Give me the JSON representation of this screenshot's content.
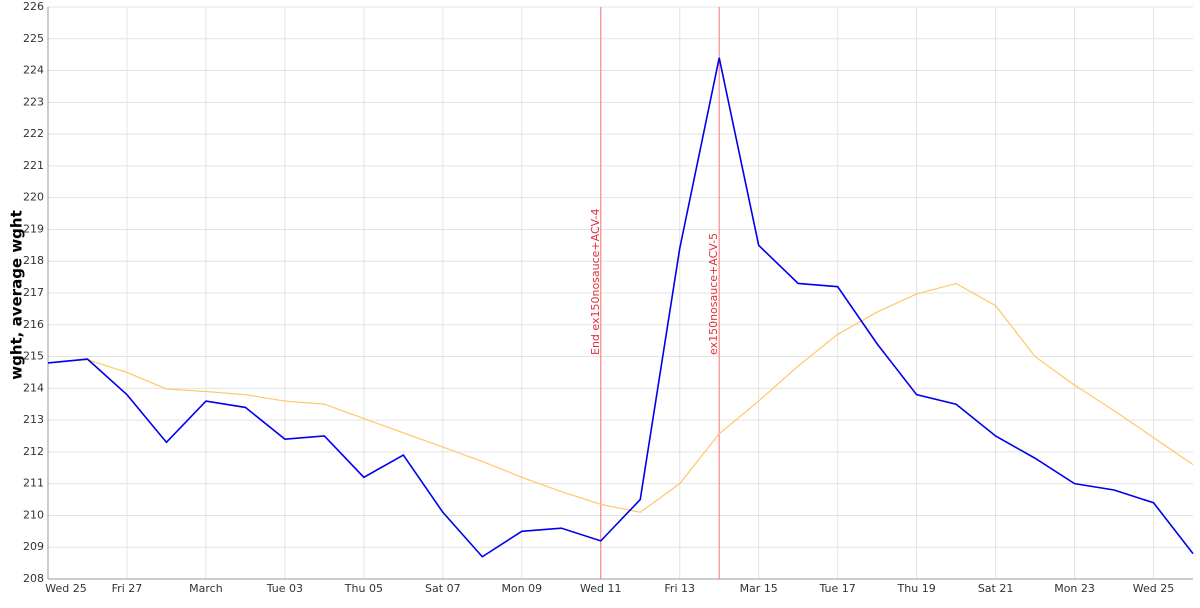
{
  "chart_data": {
    "type": "line",
    "y_label": "wght, average wght",
    "categories": [
      "Wed 25",
      null,
      "Fri 27",
      null,
      "March",
      null,
      "Tue 03",
      null,
      "Thu 05",
      null,
      "Sat 07",
      null,
      "Mon 09",
      null,
      "Wed 11",
      null,
      "Fri 13",
      null,
      "Mar 15",
      null,
      "Tue 17",
      null,
      "Thu 19",
      null,
      "Sat 21",
      null,
      "Mon 23",
      null,
      "Wed 25",
      null
    ],
    "series": [
      {
        "color": "#0000ee",
        "values": [
          214.8,
          214.92,
          213.8,
          212.3,
          213.6,
          213.4,
          212.4,
          212.5,
          211.2,
          211.9,
          210.1,
          208.7,
          209.5,
          209.6,
          209.2,
          210.5,
          218.4,
          224.4,
          218.5,
          217.3,
          217.2,
          215.4,
          213.8,
          213.5,
          212.5,
          211.8,
          211.0,
          210.8,
          210.4,
          208.8
        ]
      },
      {
        "color": "#ffc766",
        "values": [
          214.8,
          214.9,
          214.5,
          213.98,
          213.9,
          213.8,
          213.6,
          213.5,
          213.05,
          212.6,
          212.15,
          211.7,
          211.2,
          210.75,
          210.35,
          210.1,
          211.0,
          212.57,
          213.6,
          214.7,
          215.7,
          216.4,
          216.97,
          217.3,
          216.6,
          215.0,
          214.1,
          213.3,
          212.45,
          211.6
        ]
      }
    ],
    "annotations": [
      {
        "text": "End ex150nosauce+ACV-4",
        "x": 14,
        "color": "#ff8888"
      },
      {
        "text": "ex150nosauce+ACV-5",
        "x": 17,
        "color": "#ff8888"
      }
    ],
    "ylim": [
      208,
      226
    ],
    "yticks": [
      208,
      209,
      210,
      211,
      212,
      213,
      214,
      215,
      216,
      217,
      218,
      219,
      220,
      221,
      222,
      223,
      224,
      225,
      226
    ],
    "grid": true
  }
}
